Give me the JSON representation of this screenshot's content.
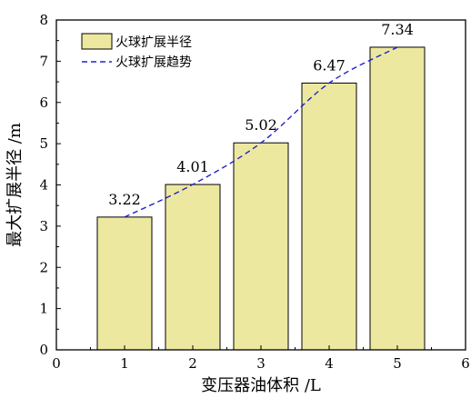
{
  "chart_data": {
    "type": "bar",
    "x": [
      1,
      2,
      3,
      4,
      5
    ],
    "values": [
      3.22,
      4.01,
      5.02,
      6.47,
      7.34
    ],
    "data_labels": [
      "3.22",
      "4.01",
      "5.02",
      "6.47",
      "7.34"
    ],
    "trend": {
      "x": [
        1,
        2,
        3,
        4,
        5
      ],
      "y": [
        3.22,
        4.01,
        5.02,
        6.47,
        7.34
      ]
    },
    "xlabel": "变压器油体积 /L",
    "ylabel": "最大扩展半径 /m",
    "xlim": [
      0,
      6
    ],
    "ylim": [
      0,
      8
    ],
    "xticks": [
      "0",
      "1",
      "2",
      "3",
      "4",
      "5",
      "6"
    ],
    "yticks": [
      "0",
      "1",
      "2",
      "3",
      "4",
      "5",
      "6",
      "7",
      "8"
    ],
    "legend": {
      "position": "top-left",
      "items": [
        {
          "label": "火球扩展半径",
          "kind": "bar"
        },
        {
          "label": "火球扩展趋势",
          "kind": "dashed-line"
        }
      ]
    },
    "colors": {
      "bar_fill": "#ede8a0",
      "bar_stroke": "#000000",
      "trend_line": "#2222cc"
    },
    "grid": false
  }
}
